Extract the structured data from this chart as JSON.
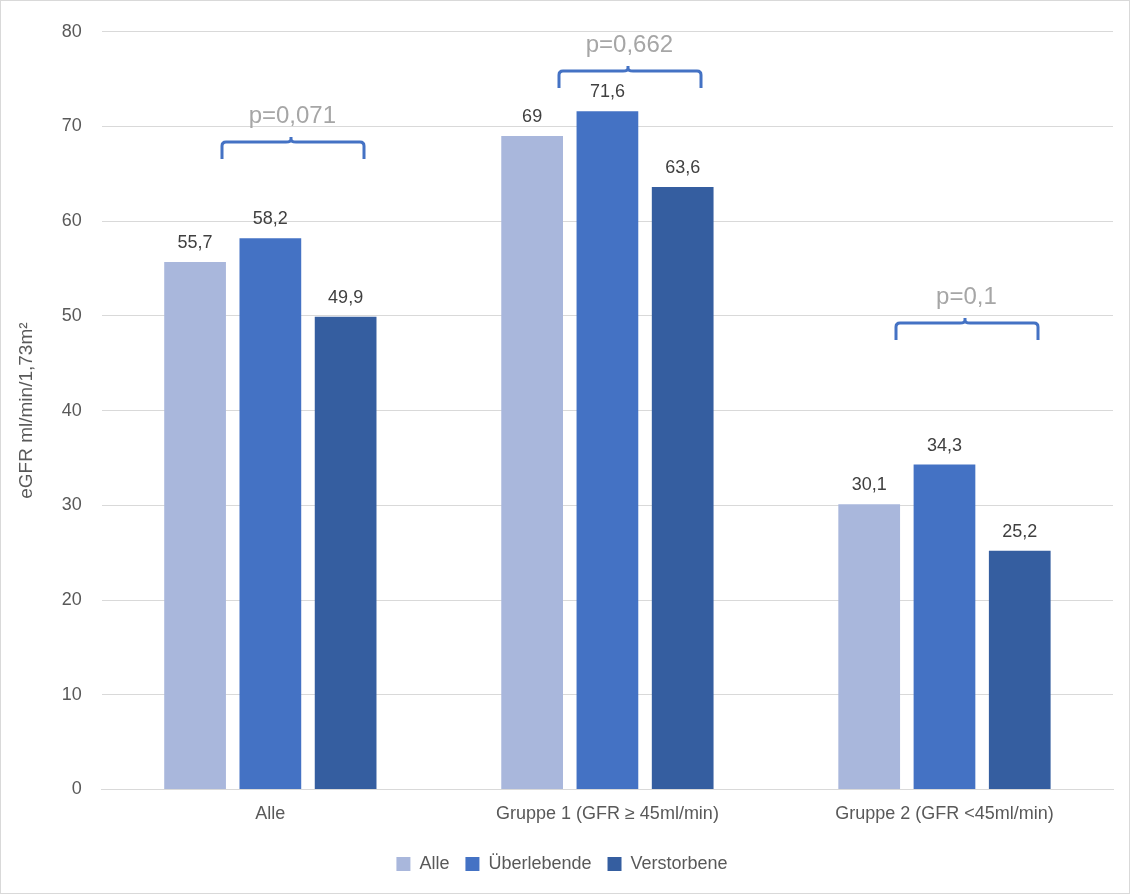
{
  "chart_data": {
    "type": "bar",
    "ylabel": "eGFR ml/min/1,73m²",
    "categories": [
      "Alle",
      "Gruppe 1 (GFR ≥ 45ml/min)",
      "Gruppe 2 (GFR <45ml/min)"
    ],
    "series": [
      {
        "name": "Alle",
        "color": "#a9b7dc",
        "values": [
          55.7,
          69,
          30.1
        ],
        "value_labels": [
          "55,7",
          "69",
          "30,1"
        ]
      },
      {
        "name": "Überlebende",
        "color": "#4472c4",
        "values": [
          58.2,
          71.6,
          34.3
        ],
        "value_labels": [
          "58,2",
          "71,6",
          "34,3"
        ]
      },
      {
        "name": "Verstorbene",
        "color": "#355ea0",
        "values": [
          49.9,
          63.6,
          25.2
        ],
        "value_labels": [
          "49,9",
          "63,6",
          "25,2"
        ]
      }
    ],
    "ylim": [
      0,
      80
    ],
    "yticks": [
      0,
      10,
      20,
      30,
      40,
      50,
      60,
      70,
      80
    ],
    "grid": "y",
    "legend": "bottom",
    "annotations": [
      "p=0,071",
      "p=0,662",
      "p=0,1"
    ]
  }
}
